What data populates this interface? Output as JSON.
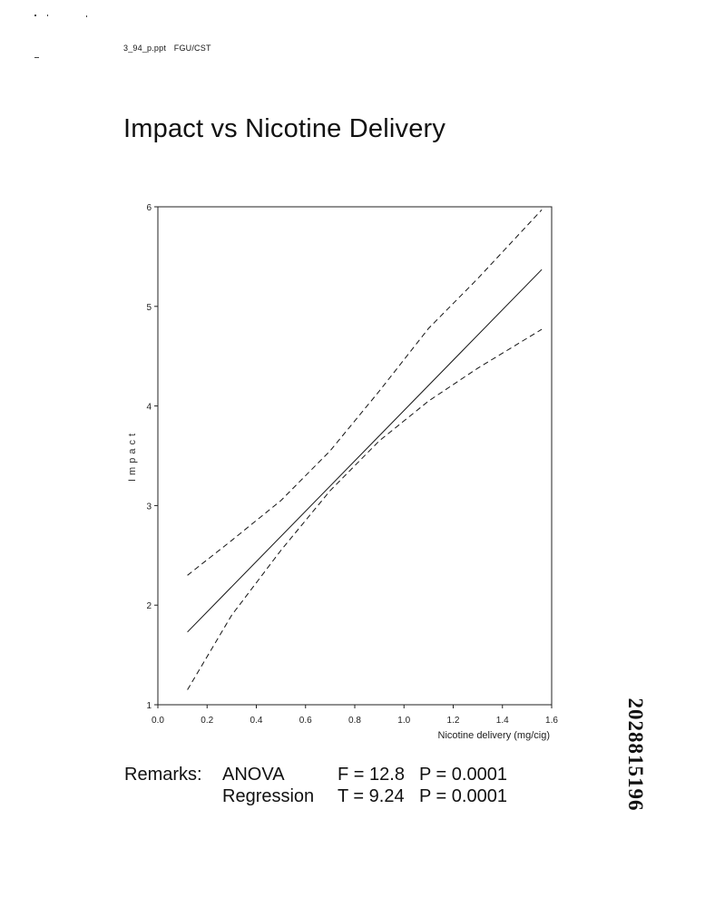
{
  "header": {
    "file": "3_94_p.ppt",
    "dept": "FGU/CST"
  },
  "title": "Impact vs Nicotine Delivery",
  "chart_data": {
    "type": "line",
    "title": "Impact vs Nicotine Delivery",
    "xlabel": "Nicotine delivery (mg/cig)",
    "ylabel": "Impact",
    "xlim": [
      0.0,
      1.6
    ],
    "ylim": [
      1,
      6
    ],
    "x_ticks": [
      "0.0",
      "0.2",
      "0.4",
      "0.6",
      "0.8",
      "1.0",
      "1.2",
      "1.4",
      "1.6"
    ],
    "y_ticks": [
      "1",
      "2",
      "3",
      "4",
      "5",
      "6"
    ],
    "grid": false,
    "series": [
      {
        "style": "dashed",
        "x": [
          0.12,
          0.3,
          0.5,
          0.7,
          0.9,
          1.1,
          1.3,
          1.56
        ],
        "y": [
          2.3,
          2.65,
          3.05,
          3.55,
          4.15,
          4.78,
          5.28,
          5.97
        ]
      },
      {
        "style": "solid",
        "x": [
          0.12,
          1.56
        ],
        "y": [
          1.73,
          5.37
        ]
      },
      {
        "style": "dashed",
        "x": [
          0.12,
          0.3,
          0.5,
          0.7,
          0.9,
          1.1,
          1.3,
          1.56
        ],
        "y": [
          1.15,
          1.9,
          2.55,
          3.15,
          3.65,
          4.05,
          4.38,
          4.77
        ]
      }
    ]
  },
  "remarks": {
    "label": "Remarks:",
    "rows": [
      {
        "test": "ANOVA",
        "stat": "F = 12.8",
        "p": "P = 0.0001"
      },
      {
        "test": "Regression",
        "stat": "T = 9.24",
        "p": "P = 0.0001"
      }
    ]
  },
  "doc_number": "2028815196"
}
